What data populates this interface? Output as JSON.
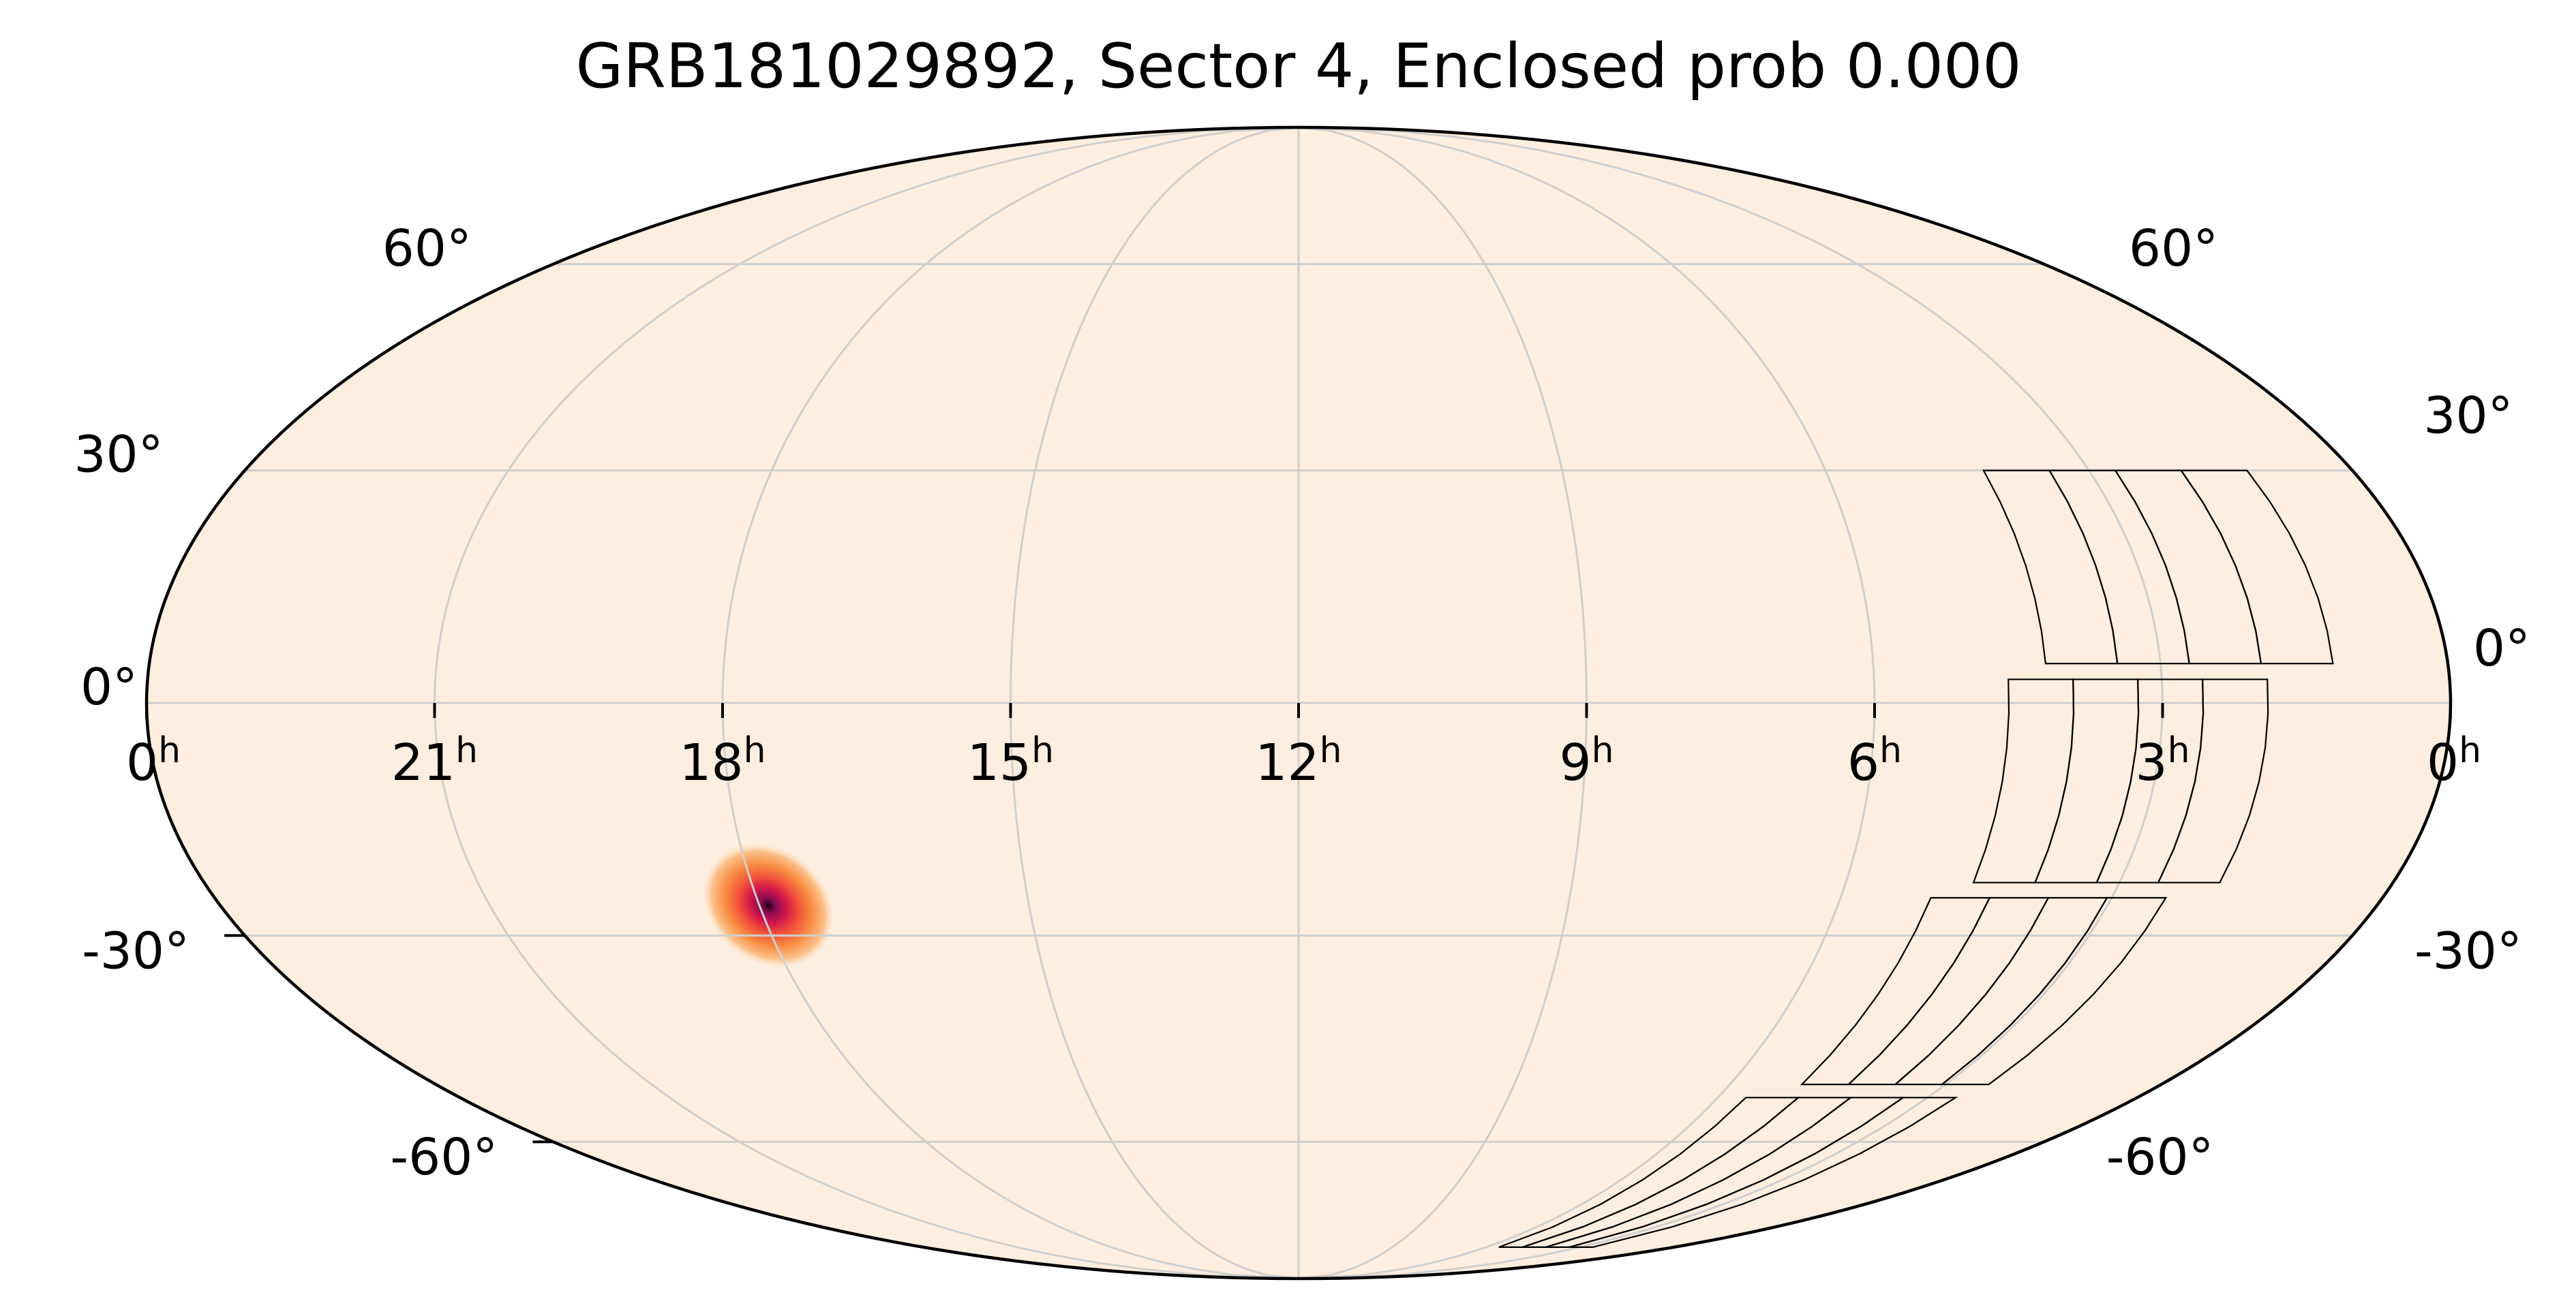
{
  "chart_data": {
    "type": "heatmap",
    "projection": "mollweide",
    "title": "GRB181029892, Sector 4, Enclosed prob 0.000",
    "xlabel": "",
    "ylabel": "",
    "grid": true,
    "colors": {
      "background": "#FDEEDF",
      "grid": "#CFCFCF",
      "outline": "#000000",
      "footprint": "#000000",
      "hotspot_colormap": [
        "#FDEEDF",
        "#FBC08A",
        "#F88C43",
        "#F2513A",
        "#D4184A",
        "#8C0B52",
        "#1A0417"
      ]
    },
    "ra_ticks_h": [
      0,
      21,
      18,
      15,
      12,
      9,
      6,
      3,
      0
    ],
    "ra_tick_labels": [
      "0",
      "21",
      "18",
      "15",
      "12",
      "9",
      "6",
      "3",
      "0"
    ],
    "ra_tick_unit": "h",
    "dec_tick_labels_left": [
      {
        "dec": 60,
        "label": "60°"
      },
      {
        "dec": 30,
        "label": "30°"
      },
      {
        "dec": 0,
        "label": "0°"
      },
      {
        "dec": -30,
        "label": "-30°"
      },
      {
        "dec": -60,
        "label": "-60°"
      }
    ],
    "dec_tick_labels_right": [
      {
        "dec": 60,
        "label": "60°"
      },
      {
        "dec": 30,
        "label": "30°"
      },
      {
        "dec": 0,
        "label": "0°"
      },
      {
        "dec": -30,
        "label": "-30°"
      },
      {
        "dec": -60,
        "label": "-60°"
      }
    ],
    "hotspot": {
      "ra_h": 17.9,
      "dec": -26,
      "peak_prob": 1.0
    },
    "footprint_bands": [
      {
        "ra_h": [
          1.2,
          4.2
        ],
        "dec": [
          30,
          5
        ]
      },
      {
        "ra_h": [
          1.9,
          4.6
        ],
        "dec": [
          3,
          -23
        ]
      },
      {
        "ra_h": [
          2.4,
          5.0
        ],
        "dec": [
          -25,
          -51
        ]
      },
      {
        "ra_h": [
          2.6,
          5.6
        ],
        "dec": [
          -53,
          -80
        ]
      }
    ]
  }
}
